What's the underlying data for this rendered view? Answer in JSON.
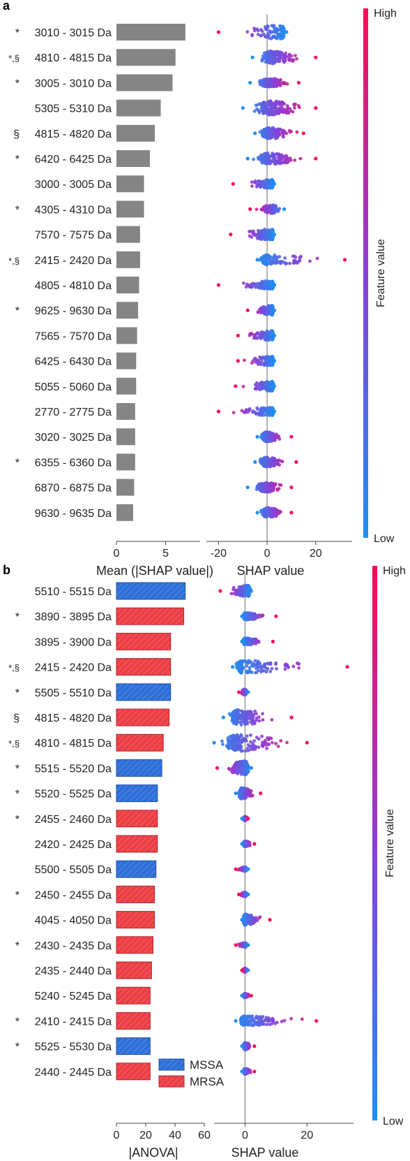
{
  "colors": {
    "bar_gray": "#858585",
    "mssa_blue": "#2e6fd9",
    "mrsa_red": "#ec3e45",
    "shap_low": "#1f8ef1",
    "shap_mid": "#8b3fd6",
    "shap_high": "#ff0a52",
    "zero_line": "#999999"
  },
  "chart_data": [
    {
      "panel": "a",
      "type": "bar",
      "orientation": "horizontal",
      "categories": [
        "3010 - 3015 Da",
        "4810 - 4815 Da",
        "3005 - 3010 Da",
        "5305 - 5310 Da",
        "4815 - 4820 Da",
        "6420 - 6425 Da",
        "3000 - 3005 Da",
        "4305 - 4310 Da",
        "7570 - 7575 Da",
        "2415 - 2420 Da",
        "4805 - 4810 Da",
        "9625 - 9630 Da",
        "7565 - 7570 Da",
        "6425 - 6430 Da",
        "5055 - 5060 Da",
        "2770 - 2775 Da",
        "3020 - 3025 Da",
        "6355 - 6360 Da",
        "6870 - 6875 Da",
        "9630 - 9635 Da"
      ],
      "prefixes": [
        "*",
        "*,§",
        "*",
        "",
        "§",
        "*",
        "",
        "*",
        "",
        "*,§",
        "",
        "*",
        "",
        "",
        "",
        "",
        "",
        "*",
        "",
        ""
      ],
      "values": [
        7.0,
        6.0,
        5.7,
        4.5,
        3.9,
        3.4,
        2.8,
        2.8,
        2.4,
        2.4,
        2.3,
        2.2,
        2.1,
        2.0,
        2.0,
        1.9,
        1.9,
        1.9,
        1.8,
        1.7
      ],
      "xlabel": "Mean (|SHAP value|)",
      "xticks": [
        0,
        5
      ],
      "xlim": [
        0,
        8.5
      ]
    },
    {
      "panel": "a",
      "type": "scatter",
      "subtype": "beeswarm",
      "xlabel": "SHAP value",
      "xticks": [
        -20,
        0,
        20
      ],
      "xlim": [
        -25,
        35
      ],
      "colorbar": {
        "high": "High",
        "low": "Low",
        "label": "Feature value"
      },
      "rows": [
        {
          "min": -20,
          "max": 8,
          "peak": 6,
          "low_side": "right",
          "width": 10
        },
        {
          "min": -6,
          "max": 20,
          "peak": 2,
          "low_side": "left",
          "width": 9
        },
        {
          "min": -7,
          "max": 13,
          "peak": 1,
          "low_side": "left",
          "width": 6
        },
        {
          "min": -10,
          "max": 20,
          "peak": 2,
          "low_side": "left",
          "width": 10
        },
        {
          "min": -5,
          "max": 15,
          "peak": 1,
          "low_side": "left",
          "width": 8
        },
        {
          "min": -8,
          "max": 20,
          "peak": 1,
          "low_side": "left",
          "width": 8
        },
        {
          "min": -14,
          "max": 3,
          "peak": 2,
          "low_side": "right",
          "width": 6
        },
        {
          "min": -7,
          "max": 7,
          "peak": 2,
          "low_side": "right",
          "width": 6
        },
        {
          "min": -15,
          "max": 3,
          "peak": 2,
          "low_side": "right",
          "width": 8
        },
        {
          "min": -4,
          "max": 32,
          "peak": 0,
          "low_side": "left",
          "width": 7
        },
        {
          "min": -20,
          "max": 3,
          "peak": 2,
          "low_side": "right",
          "width": 6
        },
        {
          "min": -8,
          "max": 3,
          "peak": 2,
          "low_side": "right",
          "width": 7
        },
        {
          "min": -12,
          "max": 3,
          "peak": 2,
          "low_side": "right",
          "width": 7
        },
        {
          "min": -12,
          "max": 3,
          "peak": 2,
          "low_side": "right",
          "width": 7
        },
        {
          "min": -13,
          "max": 3,
          "peak": 2,
          "low_side": "right",
          "width": 7
        },
        {
          "min": -20,
          "max": 3,
          "peak": 2,
          "low_side": "right",
          "width": 6
        },
        {
          "min": -4,
          "max": 10,
          "peak": 0,
          "low_side": "left",
          "width": 7
        },
        {
          "min": -5,
          "max": 12,
          "peak": 0,
          "low_side": "left",
          "width": 7
        },
        {
          "min": -8,
          "max": 10,
          "peak": 0,
          "low_side": "left",
          "width": 7
        },
        {
          "min": -4,
          "max": 10,
          "peak": 0,
          "low_side": "left",
          "width": 7
        }
      ]
    },
    {
      "panel": "b",
      "type": "bar",
      "orientation": "horizontal",
      "categories": [
        "5510 - 5515 Da",
        "3890 - 3895 Da",
        "3895 - 3900 Da",
        "2415 - 2420 Da",
        "5505 - 5510 Da",
        "4815 - 4820 Da",
        "4810 - 4815 Da",
        "5515 - 5520 Da",
        "5520 - 5525 Da",
        "2455 - 2460 Da",
        "2420 - 2425 Da",
        "5500 - 5505 Da",
        "2450 - 2455 Da",
        "4045 - 4050 Da",
        "2430 - 2435 Da",
        "2435 - 2440 Da",
        "5240 - 5245 Da",
        "2410 - 2415 Da",
        "5525 - 5530 Da",
        "2440 - 2445 Da"
      ],
      "prefixes": [
        "",
        "*",
        "",
        "*,§",
        "*",
        "§",
        "*,§",
        "*",
        "*",
        "*",
        "",
        "",
        "*",
        "",
        "*",
        "",
        "",
        "*",
        "*",
        ""
      ],
      "values": [
        47,
        46,
        37,
        37,
        37,
        36,
        32,
        31,
        28,
        28,
        28,
        27,
        26,
        26,
        25,
        24,
        23,
        23,
        23,
        23
      ],
      "groups": [
        "MSSA",
        "MRSA",
        "MRSA",
        "MRSA",
        "MSSA",
        "MRSA",
        "MRSA",
        "MSSA",
        "MSSA",
        "MRSA",
        "MRSA",
        "MSSA",
        "MRSA",
        "MRSA",
        "MRSA",
        "MRSA",
        "MRSA",
        "MRSA",
        "MSSA",
        "MRSA"
      ],
      "legend": [
        "MSSA",
        "MRSA"
      ],
      "xlabel": "|ANOVA|",
      "xticks": [
        0,
        20,
        40,
        60
      ],
      "xlim": [
        0,
        60
      ]
    },
    {
      "panel": "b",
      "type": "scatter",
      "subtype": "beeswarm",
      "xlabel": "SHAP value",
      "xticks": [
        0,
        20
      ],
      "xlim": [
        -10,
        35
      ],
      "colorbar": {
        "high": "High",
        "low": "Low",
        "label": "Feature value"
      },
      "rows": [
        {
          "min": -8,
          "max": 2,
          "peak": 1,
          "low_side": "right",
          "width": 8
        },
        {
          "min": -1,
          "max": 10,
          "peak": 0,
          "low_side": "left",
          "width": 5
        },
        {
          "min": -1,
          "max": 9,
          "peak": 0,
          "low_side": "left",
          "width": 5
        },
        {
          "min": -4,
          "max": 33,
          "peak": -1,
          "low_side": "left",
          "width": 9
        },
        {
          "min": -2,
          "max": 1,
          "peak": 0,
          "low_side": "right",
          "width": 4
        },
        {
          "min": -7,
          "max": 15,
          "peak": -2,
          "low_side": "left",
          "width": 11
        },
        {
          "min": -10,
          "max": 20,
          "peak": -2,
          "low_side": "left",
          "width": 12
        },
        {
          "min": -9,
          "max": 2,
          "peak": 0,
          "low_side": "right",
          "width": 10
        },
        {
          "min": -3,
          "max": 5,
          "peak": -1,
          "low_side": "left",
          "width": 8
        },
        {
          "min": -1,
          "max": 1,
          "peak": 0,
          "low_side": "left",
          "width": 3
        },
        {
          "min": -1,
          "max": 3,
          "peak": 0,
          "low_side": "left",
          "width": 4
        },
        {
          "min": -3,
          "max": 1,
          "peak": 0,
          "low_side": "right",
          "width": 3
        },
        {
          "min": -2,
          "max": 1,
          "peak": 0,
          "low_side": "right",
          "width": 3
        },
        {
          "min": -1,
          "max": 8,
          "peak": 0,
          "low_side": "left",
          "width": 8
        },
        {
          "min": -3,
          "max": 1,
          "peak": 0,
          "low_side": "right",
          "width": 3
        },
        {
          "min": -1,
          "max": 1,
          "peak": 0,
          "low_side": "right",
          "width": 3
        },
        {
          "min": -1,
          "max": 2,
          "peak": 0,
          "low_side": "left",
          "width": 3
        },
        {
          "min": -3,
          "max": 23,
          "peak": 0,
          "low_side": "left",
          "width": 7
        },
        {
          "min": -1,
          "max": 3,
          "peak": 0,
          "low_side": "left",
          "width": 5
        },
        {
          "min": -1,
          "max": 3,
          "peak": 0,
          "low_side": "left",
          "width": 4
        }
      ]
    }
  ],
  "panels": {
    "a": "a",
    "b": "b"
  }
}
